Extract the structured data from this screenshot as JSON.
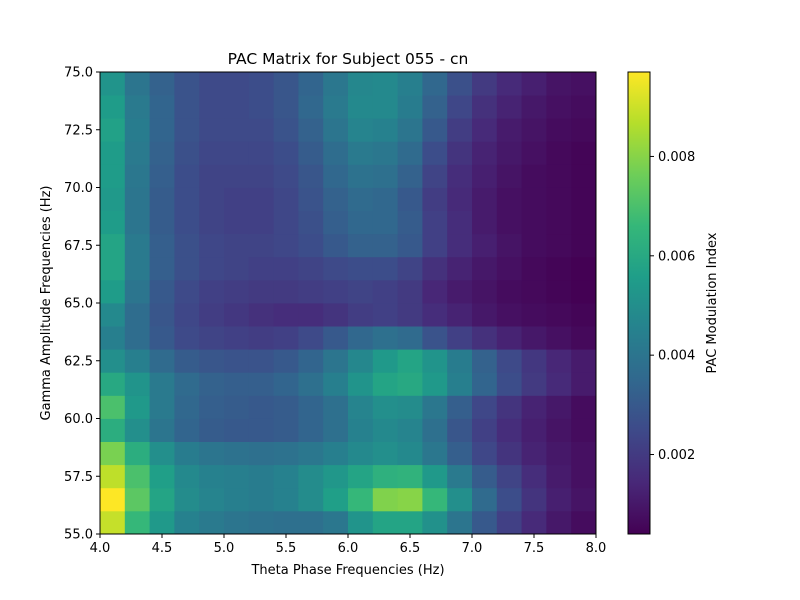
{
  "chart_data": {
    "type": "heatmap",
    "title": "PAC Matrix for Subject 055 - cn",
    "xlabel": "Theta Phase Frequencies (Hz)",
    "ylabel": "Gamma Amplitude Frequencies (Hz)",
    "colorbar_label": "PAC Modulation Index",
    "colormap": "viridis",
    "xlim": [
      4.0,
      8.0
    ],
    "ylim": [
      55.0,
      75.0
    ],
    "x_ticks": [
      "4.0",
      "4.5",
      "5.0",
      "5.5",
      "6.0",
      "6.5",
      "7.0",
      "7.5",
      "8.0"
    ],
    "y_ticks": [
      "55.0",
      "57.5",
      "60.0",
      "62.5",
      "65.0",
      "67.5",
      "70.0",
      "72.5",
      "75.0"
    ],
    "colorbar_ticks": [
      "0.002",
      "0.004",
      "0.006",
      "0.008"
    ],
    "vmin": 0.0004,
    "vmax": 0.0097,
    "x_centers": [
      4.1,
      4.3,
      4.5,
      4.7,
      4.9,
      5.1,
      5.3,
      5.5,
      5.7,
      5.9,
      6.1,
      6.3,
      6.5,
      6.7,
      6.9,
      7.1,
      7.3,
      7.5,
      7.7,
      7.9
    ],
    "y_centers": [
      55.5,
      56.5,
      57.5,
      58.5,
      59.5,
      60.5,
      61.5,
      62.5,
      63.5,
      64.5,
      65.5,
      66.5,
      67.5,
      68.5,
      69.5,
      70.5,
      71.5,
      72.5,
      73.5,
      74.5
    ],
    "z": [
      [
        0.0089,
        0.0066,
        0.0054,
        0.0045,
        0.0042,
        0.004,
        0.0039,
        0.0038,
        0.0038,
        0.0041,
        0.0052,
        0.0058,
        0.0058,
        0.0051,
        0.004,
        0.003,
        0.0022,
        0.0015,
        0.001,
        0.0007
      ],
      [
        0.0097,
        0.0073,
        0.0058,
        0.0049,
        0.0046,
        0.0044,
        0.0043,
        0.0045,
        0.0049,
        0.0056,
        0.0066,
        0.0079,
        0.008,
        0.0066,
        0.005,
        0.0036,
        0.0026,
        0.0018,
        0.0012,
        0.0009
      ],
      [
        0.0088,
        0.007,
        0.0056,
        0.0048,
        0.0045,
        0.0044,
        0.0043,
        0.0045,
        0.0049,
        0.0053,
        0.0058,
        0.0063,
        0.0064,
        0.0054,
        0.0042,
        0.0031,
        0.0023,
        0.0016,
        0.0011,
        0.0008
      ],
      [
        0.0078,
        0.0062,
        0.005,
        0.0043,
        0.004,
        0.0039,
        0.0038,
        0.0039,
        0.0041,
        0.0044,
        0.0048,
        0.005,
        0.0048,
        0.0041,
        0.0032,
        0.0024,
        0.0018,
        0.0013,
        0.001,
        0.0008
      ],
      [
        0.0062,
        0.005,
        0.004,
        0.0034,
        0.0031,
        0.003,
        0.003,
        0.0031,
        0.0034,
        0.0038,
        0.0045,
        0.0048,
        0.0046,
        0.0038,
        0.0029,
        0.0022,
        0.0016,
        0.0012,
        0.0009,
        0.0007
      ],
      [
        0.007,
        0.0054,
        0.0042,
        0.0035,
        0.0032,
        0.0031,
        0.003,
        0.0031,
        0.0034,
        0.0038,
        0.0046,
        0.005,
        0.0049,
        0.0041,
        0.0032,
        0.0024,
        0.0018,
        0.0013,
        0.001,
        0.0007
      ],
      [
        0.006,
        0.0052,
        0.0042,
        0.0036,
        0.0033,
        0.0032,
        0.0032,
        0.0034,
        0.0038,
        0.0044,
        0.0052,
        0.0058,
        0.006,
        0.0054,
        0.0044,
        0.0034,
        0.0026,
        0.002,
        0.0015,
        0.0011
      ],
      [
        0.005,
        0.0044,
        0.0036,
        0.0031,
        0.0029,
        0.0028,
        0.0028,
        0.003,
        0.0034,
        0.004,
        0.0047,
        0.0054,
        0.0058,
        0.0052,
        0.0043,
        0.0033,
        0.0025,
        0.0019,
        0.0014,
        0.0011
      ],
      [
        0.0044,
        0.0037,
        0.003,
        0.0025,
        0.0023,
        0.0022,
        0.0021,
        0.0022,
        0.0025,
        0.003,
        0.0035,
        0.0038,
        0.0036,
        0.0028,
        0.0022,
        0.0017,
        0.0013,
        0.001,
        0.0008,
        0.0006
      ],
      [
        0.0048,
        0.0037,
        0.0029,
        0.0024,
        0.0021,
        0.0019,
        0.0017,
        0.0016,
        0.0016,
        0.0018,
        0.0021,
        0.0022,
        0.002,
        0.0016,
        0.0013,
        0.001,
        0.0008,
        0.0007,
        0.0006,
        0.0005
      ],
      [
        0.0055,
        0.004,
        0.003,
        0.0025,
        0.0022,
        0.0021,
        0.002,
        0.002,
        0.0021,
        0.0022,
        0.0023,
        0.0022,
        0.002,
        0.0014,
        0.0011,
        0.0009,
        0.0007,
        0.0006,
        0.0005,
        0.0004
      ],
      [
        0.0058,
        0.0042,
        0.0032,
        0.0027,
        0.0024,
        0.0023,
        0.0022,
        0.0022,
        0.0023,
        0.0025,
        0.0026,
        0.0026,
        0.0023,
        0.0017,
        0.0013,
        0.001,
        0.0008,
        0.0006,
        0.0005,
        0.0004
      ],
      [
        0.0058,
        0.0042,
        0.0032,
        0.0027,
        0.0024,
        0.0023,
        0.0023,
        0.0024,
        0.0026,
        0.003,
        0.0033,
        0.0033,
        0.003,
        0.0022,
        0.0016,
        0.0012,
        0.0009,
        0.0007,
        0.0006,
        0.0005
      ],
      [
        0.0055,
        0.004,
        0.0031,
        0.0026,
        0.0023,
        0.0022,
        0.0022,
        0.0024,
        0.0027,
        0.0032,
        0.0035,
        0.0035,
        0.0031,
        0.0022,
        0.0016,
        0.0011,
        0.0008,
        0.0007,
        0.0006,
        0.0005
      ],
      [
        0.0054,
        0.004,
        0.0031,
        0.0026,
        0.0023,
        0.0022,
        0.0022,
        0.0024,
        0.0028,
        0.0033,
        0.0036,
        0.0035,
        0.003,
        0.0021,
        0.0015,
        0.0011,
        0.0008,
        0.0007,
        0.0006,
        0.0005
      ],
      [
        0.0055,
        0.0041,
        0.0032,
        0.0026,
        0.0023,
        0.0023,
        0.0023,
        0.0025,
        0.0029,
        0.0035,
        0.0039,
        0.0038,
        0.0033,
        0.0023,
        0.0016,
        0.0012,
        0.0009,
        0.0007,
        0.0006,
        0.0005
      ],
      [
        0.0055,
        0.0042,
        0.0033,
        0.0027,
        0.0024,
        0.0024,
        0.0024,
        0.0026,
        0.0031,
        0.0037,
        0.0042,
        0.0041,
        0.0036,
        0.0026,
        0.0018,
        0.0013,
        0.001,
        0.0008,
        0.0006,
        0.0005
      ],
      [
        0.0057,
        0.0043,
        0.0034,
        0.0028,
        0.0025,
        0.0025,
        0.0025,
        0.0028,
        0.0033,
        0.004,
        0.0046,
        0.0045,
        0.004,
        0.003,
        0.0021,
        0.0015,
        0.0011,
        0.0009,
        0.0007,
        0.0006
      ],
      [
        0.0055,
        0.0042,
        0.0034,
        0.0028,
        0.0025,
        0.0025,
        0.0026,
        0.0029,
        0.0035,
        0.0042,
        0.0048,
        0.0048,
        0.0043,
        0.0033,
        0.0024,
        0.0017,
        0.0013,
        0.001,
        0.0008,
        0.0007
      ],
      [
        0.0052,
        0.004,
        0.0033,
        0.0028,
        0.0025,
        0.0025,
        0.0026,
        0.0029,
        0.0034,
        0.0041,
        0.0047,
        0.0048,
        0.0044,
        0.0035,
        0.0027,
        0.002,
        0.0015,
        0.0012,
        0.0009,
        0.0008
      ]
    ]
  }
}
